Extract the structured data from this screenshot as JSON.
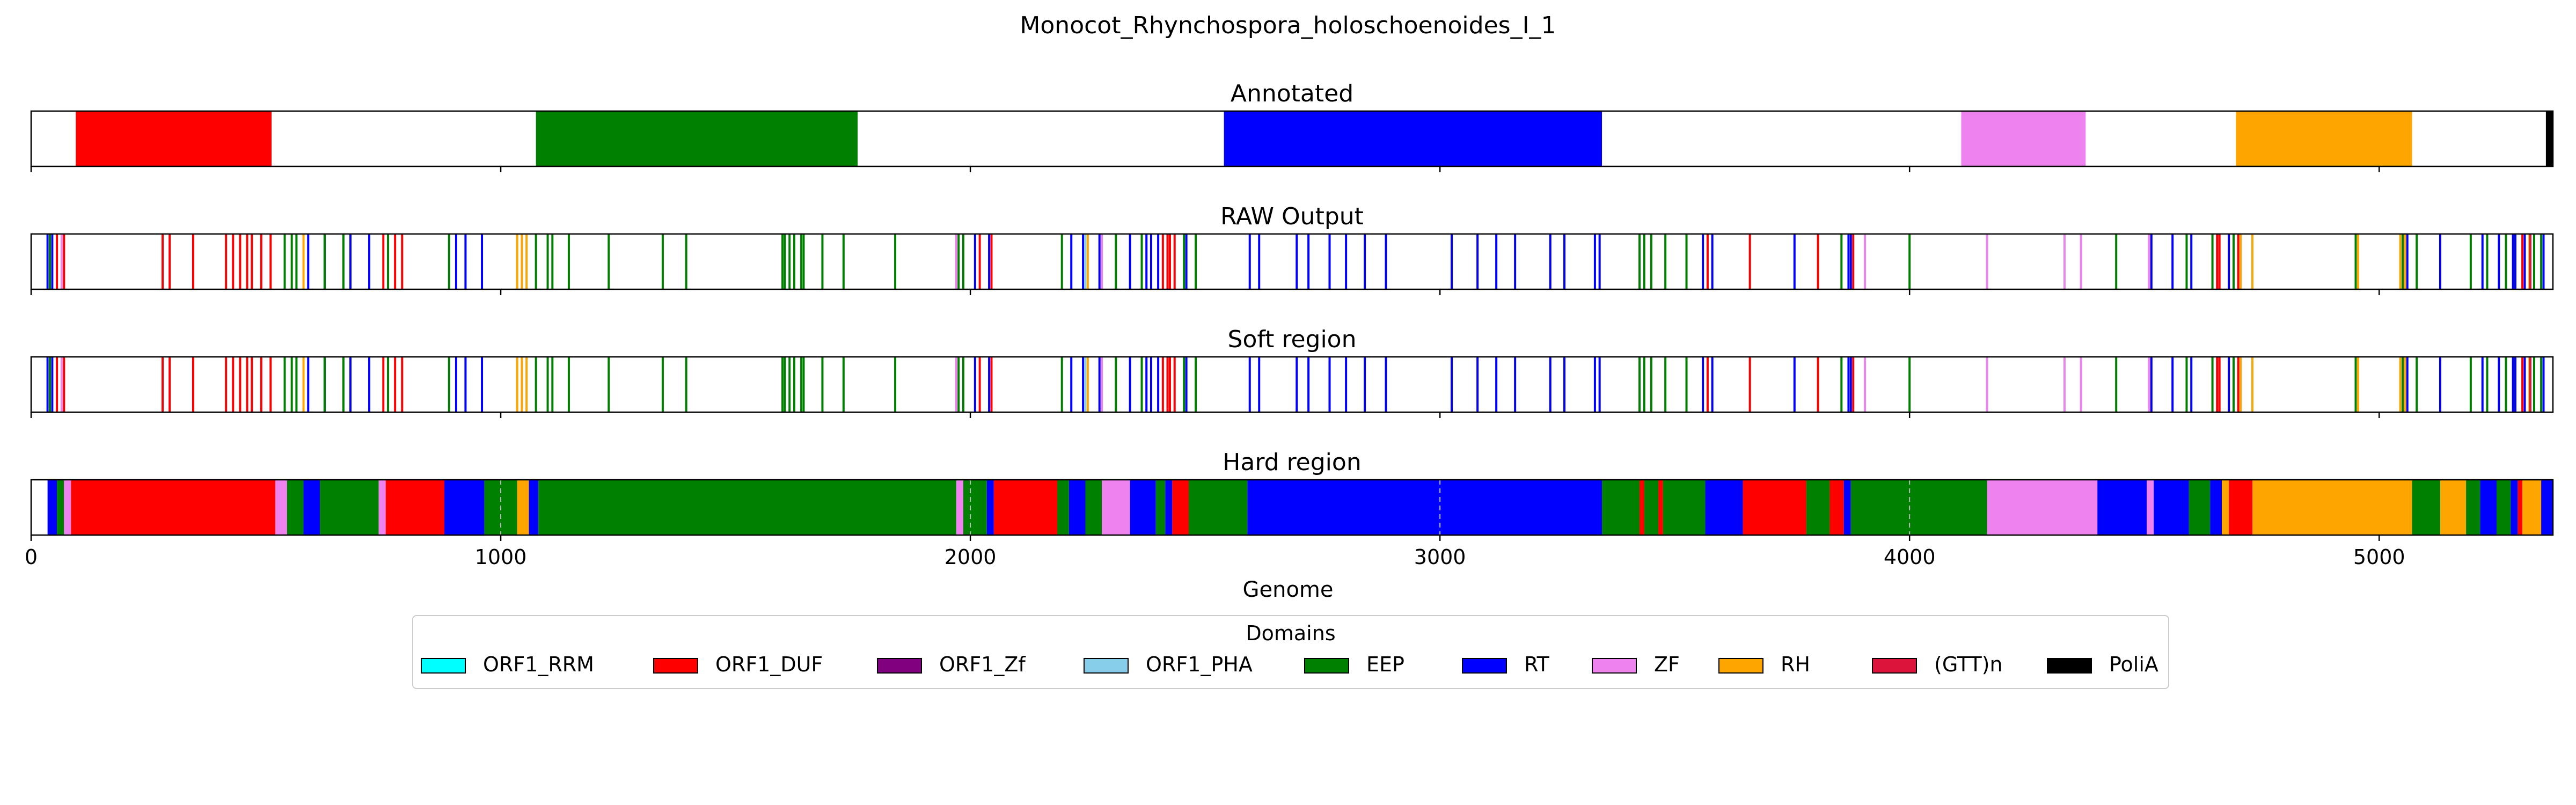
{
  "chart_data": {
    "type": "track",
    "title": "Monocot_Rhynchospora_holoschoenoides_I_1",
    "xlabel": "Genome",
    "xlim": [
      0,
      5370
    ],
    "xticks": [
      0,
      1000,
      2000,
      3000,
      4000,
      5000
    ],
    "legend": {
      "title": "Domains",
      "placement": "bottom-center",
      "items": [
        {
          "name": "ORF1_RRM",
          "color": "#00ffff"
        },
        {
          "name": "ORF1_DUF",
          "color": "#ff0000"
        },
        {
          "name": "ORF1_Zf",
          "color": "#800080"
        },
        {
          "name": "ORF1_PHA",
          "color": "#87ceeb"
        },
        {
          "name": "EEP",
          "color": "#008000"
        },
        {
          "name": "RT",
          "color": "#0000ff"
        },
        {
          "name": "ZF",
          "color": "#ee82ee"
        },
        {
          "name": "RH",
          "color": "#ffa500"
        },
        {
          "name": "(GTT)n",
          "color": "#dc143c"
        },
        {
          "name": "PoliA",
          "color": "#000000"
        }
      ]
    },
    "panels": [
      {
        "title": "Annotated",
        "style": "blocks",
        "segments": [
          {
            "domain": "ORF1_DUF",
            "start": 95,
            "end": 512
          },
          {
            "domain": "EEP",
            "start": 1075,
            "end": 1760
          },
          {
            "domain": "RT",
            "start": 2540,
            "end": 3345
          },
          {
            "domain": "ZF",
            "start": 4110,
            "end": 4375
          },
          {
            "domain": "RH",
            "start": 4695,
            "end": 5070
          },
          {
            "domain": "PoliA",
            "start": 5355,
            "end": 5370
          }
        ]
      },
      {
        "title": "RAW Output",
        "style": "lines",
        "hits": [
          {
            "domain": "RT",
            "pos": [
              35,
              45,
              590,
              625,
              680,
              720,
              905,
              925,
              960,
              2010,
              2040,
              2215,
              2240,
              2275,
              2340,
              2375,
              2385,
              2400,
              2420,
              2460,
              2595,
              2615,
              2695,
              2720,
              2765,
              2800,
              2840,
              2885,
              3025,
              3080,
              3120,
              3160,
              3235,
              3265,
              3330,
              3340,
              3560,
              3580,
              3755,
              3870,
              3875,
              4515,
              4560,
              4600,
              4655,
              4680,
              5060,
              5130,
              5220,
              5255,
              5285,
              5290,
              5310,
              5350
            ]
          },
          {
            "domain": "ORF1_DUF",
            "pos": [
              55,
              70,
              280,
              295,
              345,
              415,
              430,
              445,
              460,
              470,
              490,
              510,
              750,
              775,
              790,
              2020,
              2045,
              2410,
              2420,
              2425,
              2435,
              3570,
              3660,
              3805,
              3880,
              4655,
              4660,
              4700,
              5305
            ]
          },
          {
            "domain": "EEP",
            "pos": [
              40,
              540,
              555,
              565,
              625,
              665,
              760,
              890,
              1075,
              1100,
              1110,
              1145,
              1230,
              1345,
              1395,
              1600,
              1605,
              1615,
              1625,
              1640,
              1645,
              1685,
              1730,
              1840,
              1975,
              1985,
              2195,
              2310,
              2365,
              2455,
              2480,
              3425,
              3435,
              3450,
              3480,
              3525,
              3855,
              4000,
              4440,
              4590,
              4645,
              4690,
              4950,
              5050,
              5080,
              5195,
              5230,
              5270,
              5330,
              5345
            ]
          },
          {
            "domain": "ZF",
            "pos": [
              65,
              1970,
              2280,
              3905,
              4165,
              4330,
              4365,
              4510
            ]
          },
          {
            "domain": "RH",
            "pos": [
              580,
              1035,
              1045,
              1055,
              2250,
              4705,
              4730,
              4955,
              5045,
              5055,
              5320
            ]
          },
          {
            "domain": "(GTT)n",
            "pos": [
              5322
            ]
          },
          {
            "domain": "ORF1_PHA",
            "pos": [
              2245
            ]
          }
        ]
      },
      {
        "title": "Soft region",
        "style": "lines",
        "hits": [
          {
            "domain": "RT",
            "pos": [
              35,
              45,
              590,
              625,
              680,
              720,
              905,
              925,
              960,
              2010,
              2040,
              2215,
              2240,
              2275,
              2340,
              2375,
              2385,
              2400,
              2420,
              2460,
              2595,
              2615,
              2695,
              2720,
              2765,
              2800,
              2840,
              2885,
              3025,
              3080,
              3120,
              3160,
              3235,
              3265,
              3330,
              3340,
              3560,
              3580,
              3755,
              3870,
              3875,
              4515,
              4560,
              4600,
              4655,
              4680,
              5060,
              5130,
              5220,
              5255,
              5285,
              5290,
              5310,
              5350
            ]
          },
          {
            "domain": "ORF1_DUF",
            "pos": [
              55,
              70,
              280,
              295,
              345,
              415,
              430,
              445,
              460,
              470,
              490,
              510,
              750,
              775,
              790,
              2020,
              2045,
              2410,
              2420,
              2425,
              2435,
              3570,
              3660,
              3805,
              3880,
              4655,
              4660,
              4700,
              5305
            ]
          },
          {
            "domain": "EEP",
            "pos": [
              40,
              540,
              555,
              565,
              625,
              665,
              760,
              890,
              1075,
              1100,
              1110,
              1145,
              1230,
              1345,
              1395,
              1600,
              1605,
              1615,
              1625,
              1640,
              1645,
              1685,
              1730,
              1840,
              1975,
              1985,
              2195,
              2310,
              2365,
              2455,
              2480,
              3425,
              3435,
              3450,
              3480,
              3525,
              3855,
              4000,
              4440,
              4590,
              4645,
              4690,
              4950,
              5050,
              5080,
              5195,
              5230,
              5270,
              5330,
              5345
            ]
          },
          {
            "domain": "ZF",
            "pos": [
              65,
              1970,
              2280,
              3905,
              4165,
              4330,
              4365,
              4510
            ]
          },
          {
            "domain": "RH",
            "pos": [
              580,
              1035,
              1045,
              1055,
              2250,
              4705,
              4730,
              4955,
              5045,
              5055,
              5320
            ]
          },
          {
            "domain": "(GTT)n",
            "pos": [
              5322
            ]
          },
          {
            "domain": "ORF1_PHA",
            "pos": [
              2245
            ]
          }
        ]
      },
      {
        "title": "Hard region",
        "style": "blocks",
        "gridlines": [
          1000,
          2000,
          3000,
          4000
        ],
        "segments": [
          {
            "domain": "RT",
            "start": 35,
            "end": 55
          },
          {
            "domain": "EEP",
            "start": 55,
            "end": 70
          },
          {
            "domain": "ZF",
            "start": 70,
            "end": 85
          },
          {
            "domain": "ORF1_DUF",
            "start": 85,
            "end": 520
          },
          {
            "domain": "ZF",
            "start": 520,
            "end": 545
          },
          {
            "domain": "EEP",
            "start": 545,
            "end": 580
          },
          {
            "domain": "RT",
            "start": 580,
            "end": 615
          },
          {
            "domain": "EEP",
            "start": 615,
            "end": 740
          },
          {
            "domain": "ZF",
            "start": 740,
            "end": 755
          },
          {
            "domain": "ORF1_DUF",
            "start": 755,
            "end": 880
          },
          {
            "domain": "RT",
            "start": 880,
            "end": 965
          },
          {
            "domain": "EEP",
            "start": 965,
            "end": 1035
          },
          {
            "domain": "RH",
            "start": 1035,
            "end": 1060
          },
          {
            "domain": "RT",
            "start": 1060,
            "end": 1080
          },
          {
            "domain": "EEP",
            "start": 1080,
            "end": 1970
          },
          {
            "domain": "ZF",
            "start": 1970,
            "end": 1985
          },
          {
            "domain": "EEP",
            "start": 1985,
            "end": 2035
          },
          {
            "domain": "RT",
            "start": 2035,
            "end": 2050
          },
          {
            "domain": "ORF1_DUF",
            "start": 2050,
            "end": 2185
          },
          {
            "domain": "EEP",
            "start": 2185,
            "end": 2210
          },
          {
            "domain": "RT",
            "start": 2210,
            "end": 2245
          },
          {
            "domain": "EEP",
            "start": 2245,
            "end": 2280
          },
          {
            "domain": "ZF",
            "start": 2280,
            "end": 2340
          },
          {
            "domain": "RT",
            "start": 2340,
            "end": 2395
          },
          {
            "domain": "EEP",
            "start": 2395,
            "end": 2415
          },
          {
            "domain": "RT",
            "start": 2415,
            "end": 2430
          },
          {
            "domain": "ORF1_DUF",
            "start": 2430,
            "end": 2465
          },
          {
            "domain": "EEP",
            "start": 2465,
            "end": 2590
          },
          {
            "domain": "RT",
            "start": 2590,
            "end": 3345
          },
          {
            "domain": "EEP",
            "start": 3345,
            "end": 3425
          },
          {
            "domain": "ORF1_DUF",
            "start": 3425,
            "end": 3435
          },
          {
            "domain": "EEP",
            "start": 3435,
            "end": 3465
          },
          {
            "domain": "ORF1_DUF",
            "start": 3465,
            "end": 3475
          },
          {
            "domain": "EEP",
            "start": 3475,
            "end": 3565
          },
          {
            "domain": "RT",
            "start": 3565,
            "end": 3645
          },
          {
            "domain": "ORF1_DUF",
            "start": 3645,
            "end": 3780
          },
          {
            "domain": "EEP",
            "start": 3780,
            "end": 3830
          },
          {
            "domain": "ORF1_DUF",
            "start": 3830,
            "end": 3860
          },
          {
            "domain": "RT",
            "start": 3860,
            "end": 3875
          },
          {
            "domain": "EEP",
            "start": 3875,
            "end": 4165
          },
          {
            "domain": "ZF",
            "start": 4165,
            "end": 4400
          },
          {
            "domain": "RT",
            "start": 4400,
            "end": 4505
          },
          {
            "domain": "ZF",
            "start": 4505,
            "end": 4520
          },
          {
            "domain": "RT",
            "start": 4520,
            "end": 4595
          },
          {
            "domain": "EEP",
            "start": 4595,
            "end": 4640
          },
          {
            "domain": "RT",
            "start": 4640,
            "end": 4665
          },
          {
            "domain": "RH",
            "start": 4665,
            "end": 4680
          },
          {
            "domain": "ORF1_DUF",
            "start": 4680,
            "end": 4730
          },
          {
            "domain": "RH",
            "start": 4730,
            "end": 5070
          },
          {
            "domain": "EEP",
            "start": 5070,
            "end": 5130
          },
          {
            "domain": "RH",
            "start": 5130,
            "end": 5185
          },
          {
            "domain": "EEP",
            "start": 5185,
            "end": 5215
          },
          {
            "domain": "RT",
            "start": 5215,
            "end": 5250
          },
          {
            "domain": "EEP",
            "start": 5250,
            "end": 5280
          },
          {
            "domain": "RT",
            "start": 5280,
            "end": 5295
          },
          {
            "domain": "ORF1_DUF",
            "start": 5295,
            "end": 5305
          },
          {
            "domain": "RH",
            "start": 5305,
            "end": 5345
          },
          {
            "domain": "RT",
            "start": 5345,
            "end": 5370
          }
        ]
      }
    ]
  }
}
